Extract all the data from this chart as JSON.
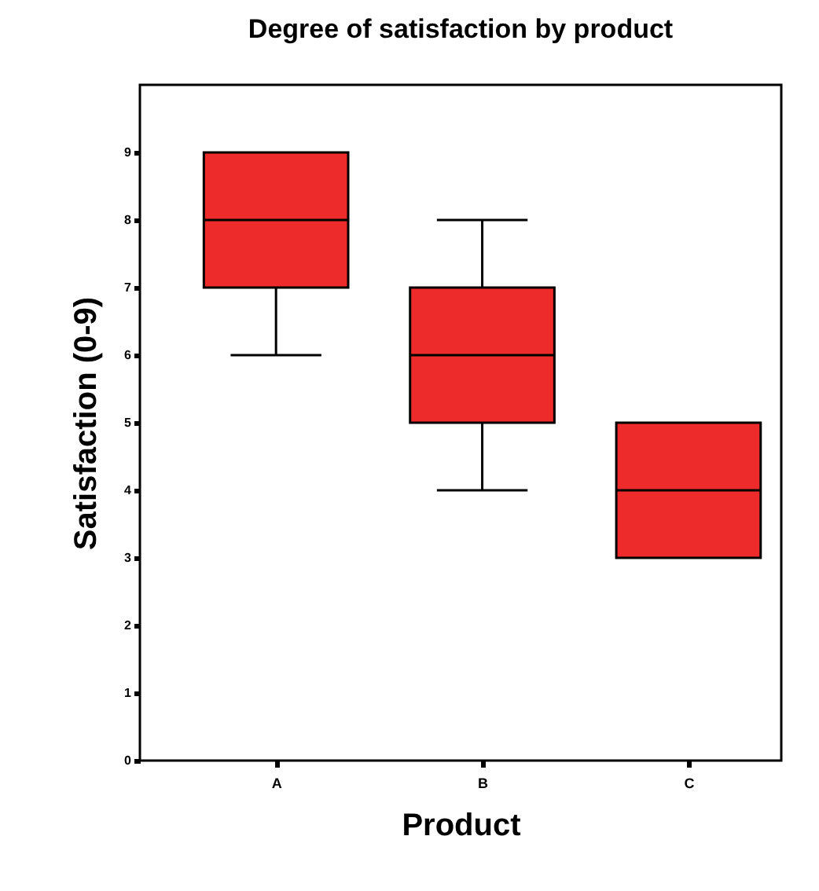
{
  "chart_data": {
    "type": "box",
    "title": "Degree of satisfaction by product",
    "xlabel": "Product",
    "ylabel": "Satisfaction (0-9)",
    "categories": [
      "A",
      "B",
      "C"
    ],
    "boxes": [
      {
        "low": 6,
        "q1": 7,
        "median": 8,
        "q3": 9,
        "high": 9
      },
      {
        "low": 4,
        "q1": 5,
        "median": 6,
        "q3": 7,
        "high": 8
      },
      {
        "low": 3,
        "q1": 3,
        "median": 4,
        "q3": 5,
        "high": 5
      }
    ],
    "color": "#ee2b2b",
    "ylim": [
      0,
      10
    ],
    "yticks": [
      0,
      1,
      2,
      3,
      4,
      5,
      6,
      7,
      8,
      9
    ],
    "grid": false
  }
}
